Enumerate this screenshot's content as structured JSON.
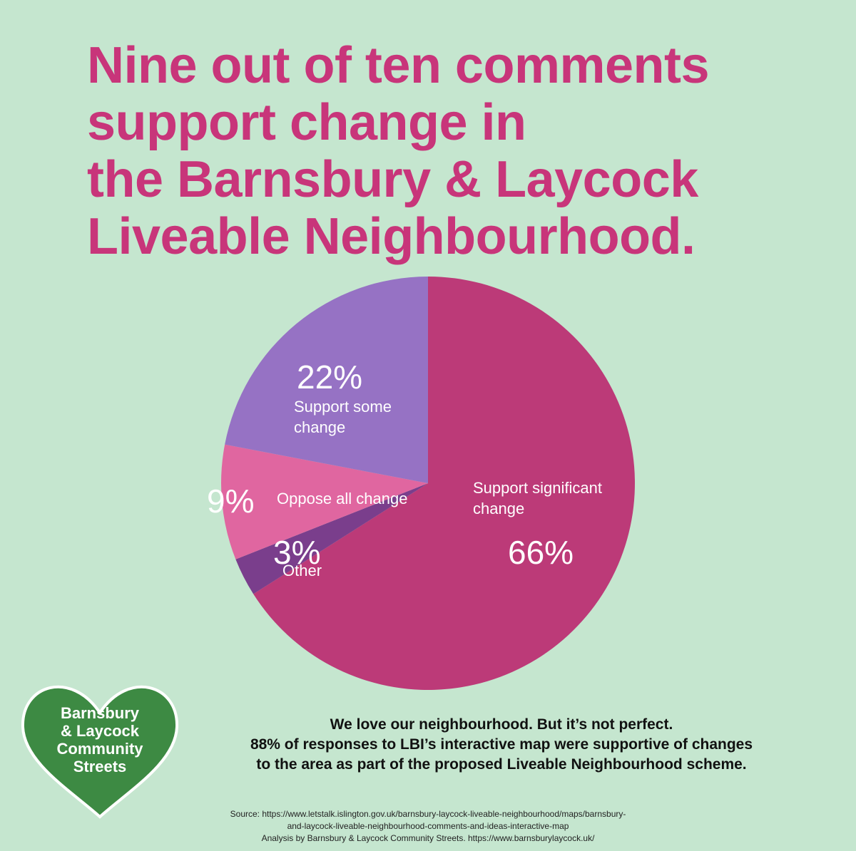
{
  "chart_data": {
    "type": "pie",
    "title": [
      "Nine out of ten comments",
      "support change in",
      "the Barnsbury & Laycock",
      "Liveable Neighbourhood."
    ],
    "categories": [
      "Support significant change",
      "Other",
      "Oppose all change",
      "Support some change"
    ],
    "values": [
      66,
      3,
      9,
      22
    ],
    "value_labels": [
      "66%",
      "3%",
      "9%",
      "22%"
    ],
    "colors": [
      "#bc3a78",
      "#7a3e8c",
      "#e066a0",
      "#9672c4"
    ]
  },
  "body_text": [
    "We love our neighbourhood. But it’s not perfect.",
    "88% of responses to LBI’s interactive map were supportive of changes",
    "to the area as part of the proposed Liveable Neighbourhood scheme."
  ],
  "source": [
    "Source: https://www.letstalk.islington.gov.uk/barnsbury-laycock-liveable-neighbourhood/maps/barnsbury-",
    "and-laycock-liveable-neighbourhood-comments-and-ideas-interactive-map",
    "Analysis by Barnsbury & Laycock Community Streets. https://www.barnsburylaycock.uk/"
  ],
  "logo": [
    "Barnsbury",
    "& Laycock",
    "Community",
    "Streets"
  ]
}
